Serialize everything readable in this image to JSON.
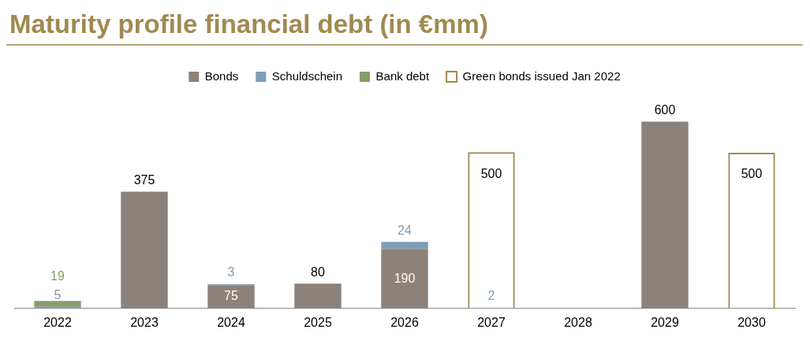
{
  "chart_data": {
    "type": "bar",
    "title": "Maturity profile financial debt (in €mm)",
    "categories": [
      "2022",
      "2023",
      "2024",
      "2025",
      "2026",
      "2027",
      "2028",
      "2029",
      "2030"
    ],
    "stacked": true,
    "data_labels": true,
    "legend": "top",
    "grid": false,
    "series": [
      {
        "name": "Bonds",
        "color": "#8c8279",
        "values": [
          null,
          375,
          75,
          80,
          190,
          null,
          null,
          600,
          null
        ]
      },
      {
        "name": "Schuldschein",
        "color": "#7f9db5",
        "values": [
          5,
          null,
          3,
          null,
          24,
          2,
          null,
          null,
          null
        ]
      },
      {
        "name": "Bank debt",
        "color": "#869d6a",
        "values": [
          19,
          null,
          null,
          null,
          null,
          null,
          null,
          null,
          null
        ]
      },
      {
        "name": "Green bonds issued Jan 2022",
        "color": "#a08a50",
        "line_style": "dashed",
        "values": [
          null,
          null,
          null,
          null,
          null,
          500,
          null,
          null,
          500
        ]
      }
    ]
  }
}
